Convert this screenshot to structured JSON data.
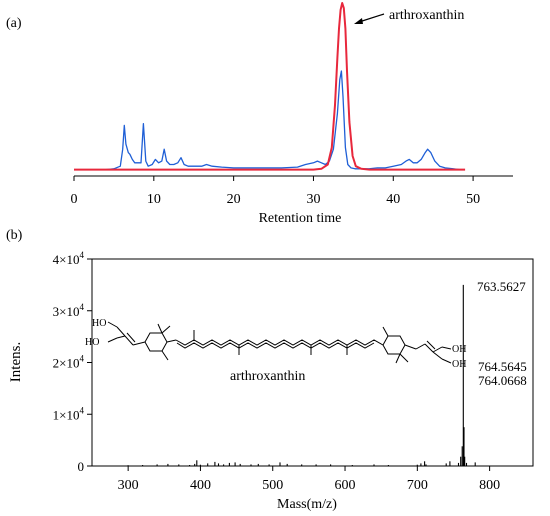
{
  "chart_data": [
    {
      "type": "line",
      "panel_label": "(a)",
      "xlabel": "Retention time",
      "ylabel": "",
      "xlim": [
        0,
        55
      ],
      "ylim": [
        0,
        1.0
      ],
      "xticks": [
        0,
        10,
        20,
        30,
        40,
        50
      ],
      "grid": false,
      "annotation": {
        "text": "arthroxanthin",
        "x": 33.7,
        "y": 0.98
      },
      "series": [
        {
          "color": "#1f5fd6",
          "x": [
            2.8,
            4.0,
            5.0,
            5.8,
            6.1,
            6.3,
            6.5,
            6.8,
            7.0,
            7.3,
            7.6,
            8.0,
            8.4,
            8.7,
            9.0,
            9.3,
            9.8,
            10.2,
            10.6,
            11.0,
            11.3,
            11.6,
            12.0,
            12.5,
            13.0,
            13.4,
            13.8,
            14.3,
            15.0,
            16.0,
            16.6,
            17.3,
            18.5,
            20.0,
            22.0,
            24.0,
            26.0,
            28.0,
            29.0,
            30.0,
            30.5,
            31.0,
            31.5,
            32.0,
            32.5,
            33.0,
            33.3,
            33.5,
            33.7,
            34.0,
            34.3,
            34.7,
            35.2,
            36.0,
            37.0,
            38.0,
            39.0,
            40.0,
            41.0,
            41.6,
            42.0,
            42.5,
            43.0,
            43.5,
            44.0,
            44.3,
            44.7,
            45.2,
            45.8,
            46.5,
            47.5,
            48.3
          ],
          "y": [
            0.02,
            0.02,
            0.025,
            0.04,
            0.14,
            0.28,
            0.17,
            0.12,
            0.11,
            0.08,
            0.06,
            0.06,
            0.06,
            0.29,
            0.07,
            0.04,
            0.05,
            0.08,
            0.06,
            0.07,
            0.14,
            0.07,
            0.05,
            0.05,
            0.06,
            0.09,
            0.05,
            0.04,
            0.04,
            0.04,
            0.05,
            0.04,
            0.035,
            0.03,
            0.03,
            0.03,
            0.03,
            0.035,
            0.05,
            0.06,
            0.07,
            0.06,
            0.05,
            0.07,
            0.14,
            0.35,
            0.55,
            0.6,
            0.45,
            0.15,
            0.05,
            0.03,
            0.025,
            0.025,
            0.025,
            0.03,
            0.03,
            0.04,
            0.05,
            0.07,
            0.08,
            0.06,
            0.06,
            0.08,
            0.12,
            0.14,
            0.12,
            0.07,
            0.04,
            0.03,
            0.025,
            0.02
          ]
        },
        {
          "color": "#e8283c",
          "x": [
            0.0,
            5.0,
            10.0,
            15.0,
            20.0,
            25.0,
            28.0,
            30.0,
            31.0,
            31.8,
            32.3,
            32.7,
            33.0,
            33.2,
            33.4,
            33.6,
            33.8,
            34.0,
            34.2,
            34.5,
            34.9,
            35.3,
            36.0,
            37.0,
            40.0,
            45.0,
            49.0
          ],
          "y": [
            0.02,
            0.02,
            0.02,
            0.02,
            0.02,
            0.02,
            0.02,
            0.02,
            0.025,
            0.05,
            0.15,
            0.4,
            0.68,
            0.85,
            0.96,
            1.0,
            0.97,
            0.85,
            0.6,
            0.3,
            0.1,
            0.04,
            0.025,
            0.02,
            0.02,
            0.02,
            0.02
          ]
        }
      ]
    },
    {
      "type": "bar",
      "panel_label": "(b)",
      "xlabel": "Mass(m/z)",
      "ylabel": "Intens.",
      "xlim": [
        250,
        860
      ],
      "ylim": [
        0,
        40000
      ],
      "xticks": [
        300,
        400,
        500,
        600,
        700,
        800
      ],
      "ytick_labels": [
        {
          "value": 0,
          "mantissa": "0",
          "exp": ""
        },
        {
          "value": 10000,
          "mantissa": "1×10",
          "exp": "4"
        },
        {
          "value": 20000,
          "mantissa": "2×10",
          "exp": "4"
        },
        {
          "value": 30000,
          "mantissa": "3×10",
          "exp": "4"
        },
        {
          "value": 40000,
          "mantissa": "4×10",
          "exp": "4"
        }
      ],
      "grid": false,
      "peak_labels": [
        "763.5627",
        "764.5645",
        "764.0668"
      ],
      "structure_label": "arthroxanthin",
      "structure_groups": [
        "HO",
        "HO",
        "OH",
        "OH"
      ],
      "mz": [
        300,
        320,
        340,
        355,
        370,
        385,
        392,
        395,
        400,
        410,
        420,
        425,
        432,
        440,
        448,
        455,
        470,
        480,
        495,
        510,
        520,
        540,
        560,
        580,
        610,
        640,
        660,
        700,
        705,
        710,
        712,
        740,
        745,
        757,
        760,
        762,
        763.56,
        764.06,
        764.56,
        765.5,
        768,
        780
      ],
      "intensity": [
        150,
        200,
        300,
        400,
        300,
        200,
        400,
        1100,
        250,
        500,
        800,
        500,
        300,
        600,
        700,
        400,
        300,
        400,
        300,
        700,
        400,
        300,
        300,
        300,
        200,
        300,
        200,
        250,
        500,
        900,
        300,
        500,
        900,
        600,
        1800,
        3800,
        35000,
        6500,
        7500,
        1800,
        600,
        700
      ]
    }
  ]
}
